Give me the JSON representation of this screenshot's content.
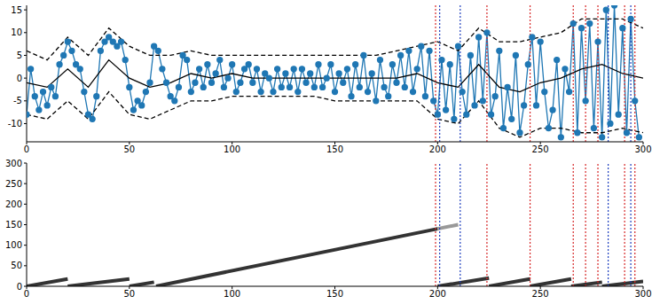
{
  "chart_data": [
    {
      "type": "line",
      "xlim": [
        0,
        300
      ],
      "xticks": [
        0,
        50,
        100,
        150,
        200,
        250,
        300
      ],
      "ylim": [
        -14,
        16
      ],
      "yticks": [
        -10,
        -5,
        0,
        5,
        10,
        15
      ],
      "series": [
        {
          "color": "#1f77b4",
          "marker": "circle",
          "line_style": "solid",
          "x": [
            0,
            2,
            4,
            6,
            8,
            10,
            12,
            14,
            16,
            18,
            20,
            22,
            24,
            26,
            28,
            30,
            32,
            34,
            36,
            38,
            40,
            42,
            44,
            46,
            48,
            50,
            52,
            54,
            56,
            58,
            60,
            62,
            64,
            66,
            68,
            70,
            72,
            74,
            76,
            78,
            80,
            82,
            84,
            86,
            88,
            90,
            92,
            94,
            96,
            98,
            100,
            102,
            104,
            106,
            108,
            110,
            112,
            114,
            116,
            118,
            120,
            122,
            124,
            126,
            128,
            130,
            132,
            134,
            136,
            138,
            140,
            142,
            144,
            146,
            148,
            150,
            152,
            154,
            156,
            158,
            160,
            162,
            164,
            166,
            168,
            170,
            172,
            174,
            176,
            178,
            180,
            182,
            184,
            186,
            188,
            190,
            192,
            194,
            196,
            198,
            200,
            202,
            204,
            206,
            208,
            210,
            212,
            214,
            216,
            218,
            220,
            222,
            224,
            226,
            228,
            230,
            232,
            234,
            236,
            238,
            240,
            242,
            244,
            246,
            248,
            250,
            252,
            254,
            256,
            258,
            260,
            262,
            264,
            266,
            268,
            270,
            272,
            274,
            276,
            278,
            280,
            282,
            284,
            286,
            288,
            290,
            292,
            294,
            296,
            298
          ],
          "values": [
            -8,
            2,
            -4,
            -7,
            -3,
            -6,
            -2,
            -4,
            3,
            5,
            8,
            6,
            3,
            2,
            -3,
            -8,
            -9,
            -4,
            6,
            8,
            9,
            8,
            7,
            8,
            4,
            -2,
            -7,
            -5,
            -6,
            -3,
            -1,
            7,
            6,
            2,
            -1,
            -4,
            -5,
            -2,
            5,
            4,
            -3,
            -1,
            2,
            -2,
            3,
            -1,
            1,
            4,
            -2,
            0,
            3,
            -3,
            -1,
            2,
            3,
            -1,
            2,
            -3,
            1,
            0,
            -3,
            2,
            -2,
            1,
            -2,
            2,
            -3,
            2,
            -1,
            1,
            -2,
            3,
            -2,
            0,
            3,
            -3,
            1,
            -1,
            2,
            -4,
            3,
            -2,
            5,
            -3,
            1,
            -5,
            4,
            -2,
            -4,
            3,
            -1,
            5,
            -2,
            6,
            -3,
            2,
            7,
            -4,
            6,
            -5,
            -8,
            4,
            -7,
            3,
            -9,
            7,
            -3,
            -8,
            5,
            -6,
            9,
            -5,
            10,
            -8,
            -4,
            6,
            -11,
            -2,
            -9,
            5,
            -12,
            -6,
            3,
            9,
            -6,
            8,
            -3,
            -11,
            -7,
            4,
            -13,
            2,
            -3,
            12,
            -12,
            11,
            -5,
            12,
            -11,
            8,
            -13,
            15,
            -10,
            16,
            -8,
            11,
            -12,
            13,
            -5,
            -13
          ]
        },
        {
          "color": "#000000",
          "marker": "none",
          "line_style": "solid",
          "x": [
            0,
            10,
            20,
            30,
            40,
            50,
            60,
            70,
            80,
            90,
            100,
            110,
            120,
            130,
            140,
            150,
            160,
            170,
            180,
            190,
            200,
            210,
            220,
            230,
            240,
            250,
            260,
            270,
            280,
            290,
            300
          ],
          "values": [
            -1,
            -2,
            2,
            -2,
            4,
            0,
            -2,
            -1,
            1,
            0,
            1,
            0,
            0,
            0,
            0,
            0,
            0,
            0,
            0,
            1,
            -1,
            -2,
            3,
            -2,
            -3,
            -1,
            0,
            2,
            3,
            1,
            0
          ]
        },
        {
          "color": "#000000",
          "marker": "none",
          "line_style": "dashed",
          "x": [
            0,
            10,
            20,
            30,
            40,
            50,
            60,
            70,
            80,
            90,
            100,
            110,
            120,
            130,
            140,
            150,
            160,
            170,
            180,
            190,
            200,
            210,
            220,
            230,
            240,
            250,
            260,
            270,
            280,
            290,
            300
          ],
          "values": [
            6,
            4,
            9,
            5,
            11,
            7,
            5,
            5,
            6,
            5,
            5,
            5,
            5,
            5,
            5,
            5,
            5,
            5,
            6,
            7,
            8,
            6,
            11,
            8,
            8,
            9,
            10,
            13,
            13,
            13,
            11
          ]
        },
        {
          "color": "#000000",
          "marker": "none",
          "line_style": "dashed",
          "x": [
            0,
            10,
            20,
            30,
            40,
            50,
            60,
            70,
            80,
            90,
            100,
            110,
            120,
            130,
            140,
            150,
            160,
            170,
            180,
            190,
            200,
            210,
            220,
            230,
            240,
            250,
            260,
            270,
            280,
            290,
            300
          ],
          "values": [
            -8,
            -9,
            -5,
            -9,
            -3,
            -8,
            -9,
            -7,
            -5,
            -5,
            -4,
            -4,
            -4,
            -4,
            -4,
            -5,
            -5,
            -5,
            -5,
            -5,
            -9,
            -10,
            -5,
            -11,
            -13,
            -11,
            -11,
            -12,
            -12,
            -11,
            -12
          ]
        }
      ],
      "vlines": [
        {
          "color": "#d62728",
          "line_style": "dotted",
          "x": [
            199,
            224,
            245,
            266,
            272,
            278,
            291,
            296
          ]
        },
        {
          "color": "#1f3fbf",
          "line_style": "dotted",
          "x": [
            201,
            211,
            283,
            294
          ]
        }
      ]
    },
    {
      "type": "line",
      "xlim": [
        0,
        300
      ],
      "xticks": [
        0,
        50,
        100,
        150,
        200,
        250,
        300
      ],
      "ylim": [
        0,
        300
      ],
      "yticks": [
        0,
        50,
        100,
        150,
        200,
        250,
        300
      ],
      "series": [
        {
          "color": "#333333",
          "marker": "none",
          "line_style": "solid",
          "x": [
            0,
            20
          ],
          "values": [
            0,
            18
          ]
        },
        {
          "color": "#333333",
          "marker": "none",
          "line_style": "solid",
          "x": [
            20,
            50
          ],
          "values": [
            0,
            18
          ]
        },
        {
          "color": "#333333",
          "marker": "none",
          "line_style": "solid",
          "x": [
            50,
            62
          ],
          "values": [
            0,
            10
          ]
        },
        {
          "color": "#333333",
          "marker": "none",
          "line_style": "solid",
          "x": [
            63,
            200
          ],
          "values": [
            0,
            140
          ]
        },
        {
          "color": "#999999",
          "marker": "none",
          "line_style": "solid",
          "x": [
            200,
            210
          ],
          "values": [
            140,
            150
          ]
        },
        {
          "color": "#333333",
          "marker": "none",
          "line_style": "solid",
          "x": [
            200,
            225
          ],
          "values": [
            0,
            20
          ]
        },
        {
          "color": "#333333",
          "marker": "none",
          "line_style": "solid",
          "x": [
            225,
            245
          ],
          "values": [
            0,
            18
          ]
        },
        {
          "color": "#333333",
          "marker": "none",
          "line_style": "solid",
          "x": [
            245,
            265
          ],
          "values": [
            0,
            18
          ]
        },
        {
          "color": "#333333",
          "marker": "none",
          "line_style": "solid",
          "x": [
            265,
            280
          ],
          "values": [
            0,
            10
          ]
        },
        {
          "color": "#333333",
          "marker": "none",
          "line_style": "solid",
          "x": [
            280,
            300
          ],
          "values": [
            0,
            12
          ]
        }
      ],
      "vlines": [
        {
          "color": "#d62728",
          "line_style": "dotted",
          "x": [
            199,
            224,
            245,
            266,
            272,
            278,
            291,
            296
          ]
        },
        {
          "color": "#1f3fbf",
          "line_style": "dotted",
          "x": [
            201,
            211,
            283,
            294
          ]
        }
      ]
    }
  ]
}
